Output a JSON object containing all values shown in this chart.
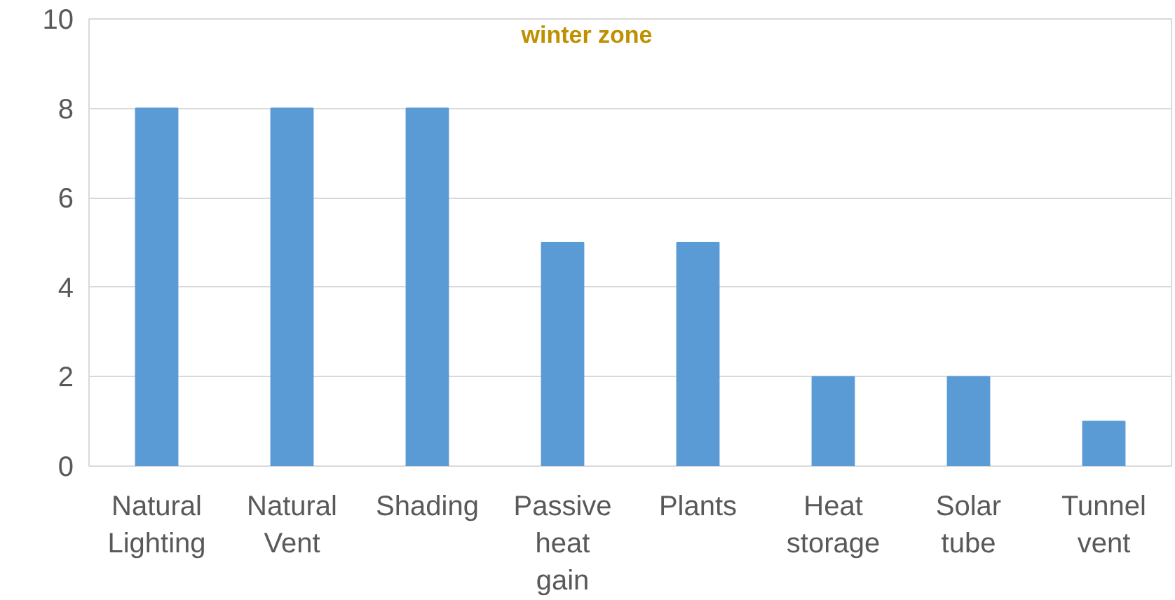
{
  "chart_data": {
    "type": "bar",
    "title": "winter zone",
    "categories": [
      "Natural\nLighting",
      "Natural\nVent",
      "Shading",
      "Passive\nheat\ngain",
      "Plants",
      "Heat\nstorage",
      "Solar\ntube",
      "Tunnel\nvent"
    ],
    "values": [
      8,
      8,
      8,
      5,
      5,
      2,
      2,
      1
    ],
    "color": "#5b9bd5",
    "ylim": [
      0,
      10
    ],
    "yticks": [
      0,
      2,
      4,
      6,
      8,
      10
    ],
    "grid": "y"
  }
}
